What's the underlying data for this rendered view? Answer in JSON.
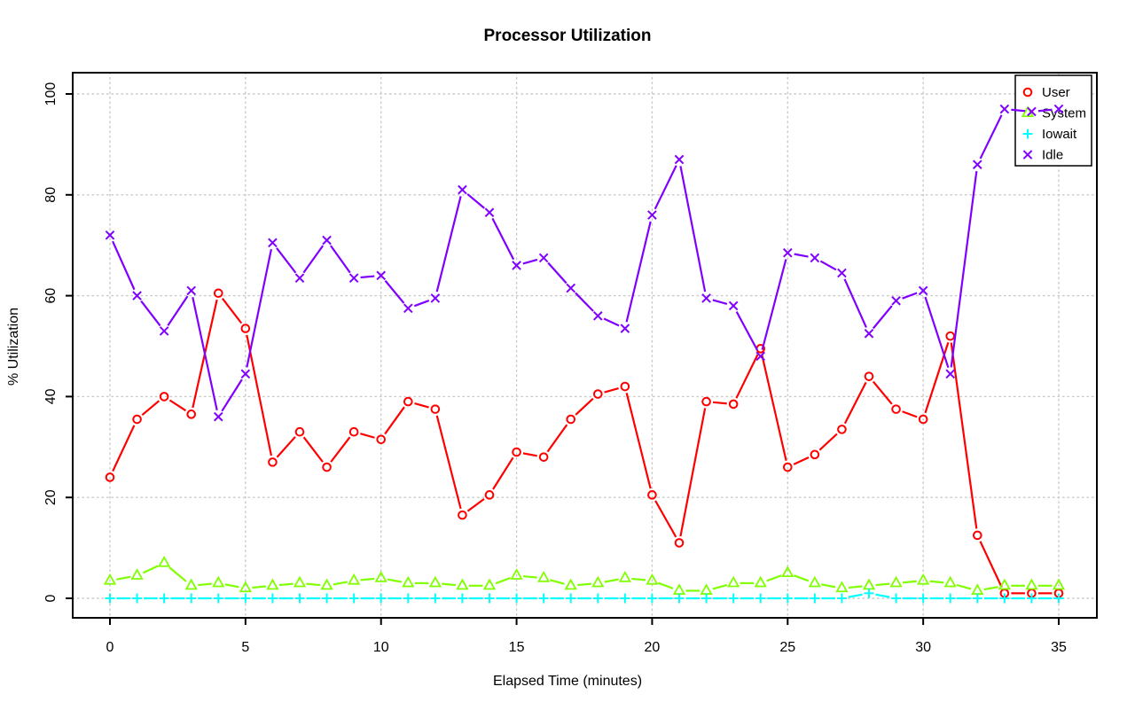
{
  "title": "Processor Utilization",
  "xlabel": "Elapsed Time (minutes)",
  "ylabel": "% Utilization",
  "colors": {
    "user": "#FF0000",
    "system": "#80FF00",
    "iowait": "#00FFFF",
    "idle": "#8000FF",
    "grid": "#C9C9C9",
    "axis": "#000000",
    "background": "#FFFFFF"
  },
  "legend": {
    "position": "top-right",
    "items": [
      {
        "label": "User",
        "marker": "circle",
        "color": "#FF0000"
      },
      {
        "label": "System",
        "marker": "triangle",
        "color": "#80FF00"
      },
      {
        "label": "Iowait",
        "marker": "plus",
        "color": "#00FFFF"
      },
      {
        "label": "Idle",
        "marker": "x",
        "color": "#8000FF"
      }
    ]
  },
  "chart_data": {
    "type": "line",
    "title": "Processor Utilization",
    "xlabel": "Elapsed Time (minutes)",
    "ylabel": "% Utilization",
    "xlim": [
      0,
      35
    ],
    "ylim": [
      0,
      100
    ],
    "grid": true,
    "grid_style": "dotted",
    "legend_position": "top-right",
    "xticks": [
      0,
      5,
      10,
      15,
      20,
      25,
      30,
      35
    ],
    "yticks": [
      0,
      20,
      40,
      60,
      80,
      100
    ],
    "x": [
      0,
      1,
      2,
      3,
      4,
      5,
      6,
      7,
      8,
      9,
      10,
      11,
      12,
      13,
      14,
      15,
      16,
      17,
      18,
      19,
      20,
      21,
      22,
      23,
      24,
      25,
      26,
      27,
      28,
      29,
      30,
      31,
      32,
      33,
      34,
      35
    ],
    "series": [
      {
        "name": "User",
        "marker": "circle",
        "color": "#FF0000",
        "values": [
          24,
          35.5,
          40,
          36.5,
          60.5,
          53.5,
          27,
          33,
          26,
          33,
          31.5,
          39,
          37.5,
          16.5,
          20.5,
          29,
          28,
          35.5,
          40.5,
          42,
          20.5,
          11,
          39,
          38.5,
          49.5,
          26,
          28.5,
          33.5,
          44,
          37.5,
          35.5,
          52,
          12.5,
          1,
          1,
          1
        ]
      },
      {
        "name": "System",
        "marker": "triangle",
        "color": "#80FF00",
        "values": [
          3.5,
          4.5,
          7,
          2.5,
          3,
          2,
          2.5,
          3,
          2.5,
          3.5,
          4,
          3,
          3,
          2.5,
          2.5,
          4.5,
          4,
          2.5,
          3,
          4,
          3.5,
          1.5,
          1.5,
          3,
          3,
          5,
          3,
          2,
          2.5,
          3,
          3.5,
          3,
          1.5,
          2.5,
          2.5,
          2.5
        ]
      },
      {
        "name": "Iowait",
        "marker": "plus",
        "color": "#00FFFF",
        "values": [
          0,
          0,
          0,
          0,
          0,
          0,
          0,
          0,
          0,
          0,
          0,
          0,
          0,
          0,
          0,
          0,
          0,
          0,
          0,
          0,
          0,
          0,
          0,
          0,
          0,
          0,
          0,
          0,
          1,
          0,
          0,
          0,
          0,
          0,
          0,
          0
        ]
      },
      {
        "name": "Idle",
        "marker": "x",
        "color": "#8000FF",
        "values": [
          72,
          60,
          53,
          61,
          36,
          44.5,
          70.5,
          63.5,
          71,
          63.5,
          64,
          57.5,
          59.5,
          81,
          76.5,
          66,
          67.5,
          61.5,
          56,
          53.5,
          76,
          87,
          59.5,
          58,
          48,
          68.5,
          67.5,
          64.5,
          52.5,
          59,
          61,
          44.5,
          86,
          97,
          96.5,
          97
        ]
      }
    ]
  }
}
